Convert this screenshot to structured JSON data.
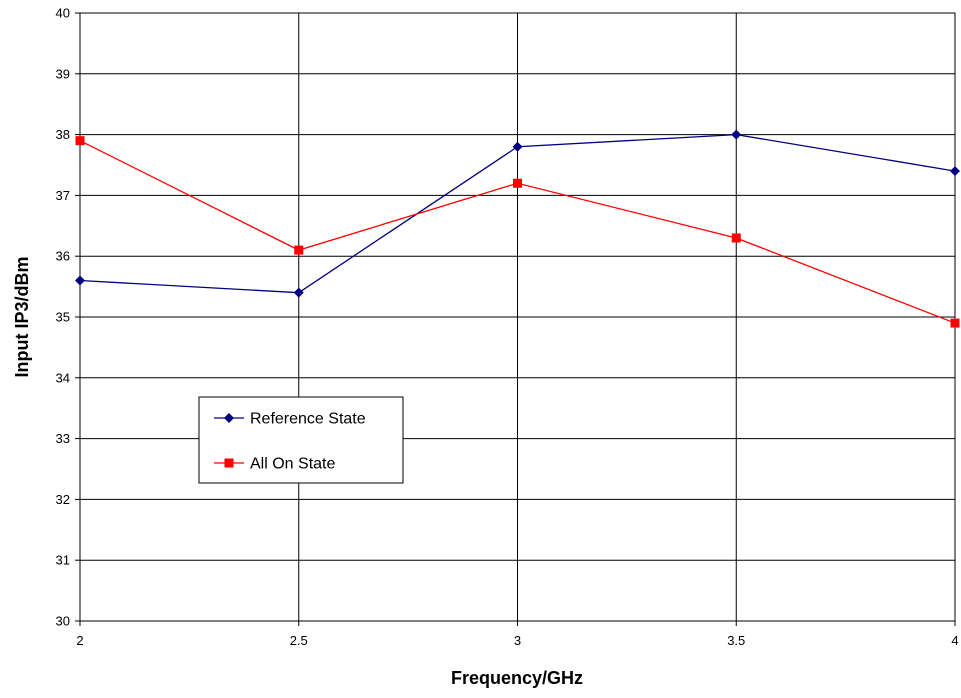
{
  "chart_data": {
    "type": "line",
    "title": "",
    "xlabel": "Frequency/GHz",
    "ylabel": "Input IP3/dBm",
    "x": [
      2,
      2.5,
      3,
      3.5,
      4
    ],
    "xticks": [
      "2",
      "2.5",
      "3",
      "3.5",
      "4"
    ],
    "xlim": [
      2,
      4
    ],
    "yticks": [
      "30",
      "31",
      "32",
      "33",
      "34",
      "35",
      "36",
      "37",
      "38",
      "39",
      "40"
    ],
    "ylim": [
      30,
      40
    ],
    "grid": true,
    "legend_position": "left",
    "series": [
      {
        "name": "Reference State",
        "values": [
          35.6,
          35.4,
          37.8,
          38.0,
          37.4
        ],
        "color": "#000080",
        "marker": "diamond"
      },
      {
        "name": "All On State",
        "values": [
          37.9,
          36.1,
          37.2,
          36.3,
          34.9
        ],
        "color": "#ff0000",
        "marker": "square"
      }
    ]
  }
}
